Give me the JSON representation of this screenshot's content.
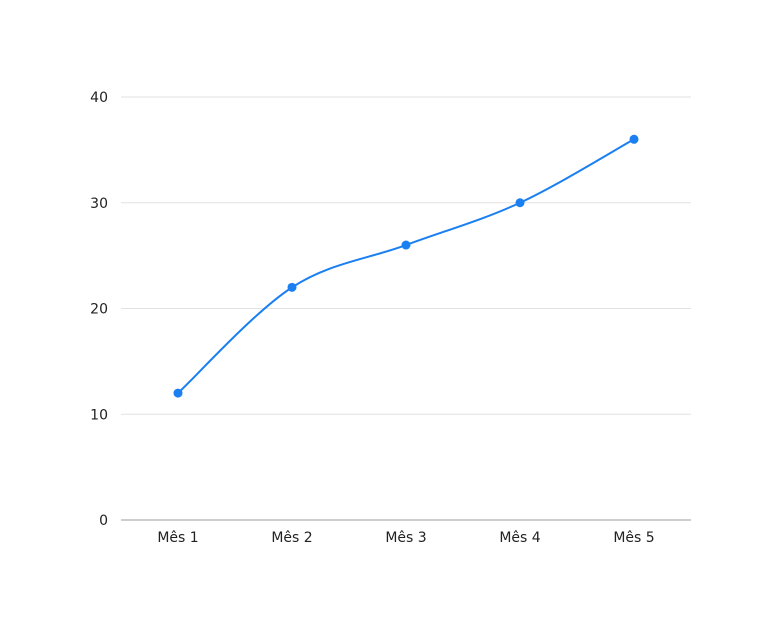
{
  "chart_data": {
    "type": "line",
    "title": "",
    "xlabel": "",
    "ylabel": "",
    "categories": [
      "Mês 1",
      "Mês 2",
      "Mês 3",
      "Mês 4",
      "Mês 5"
    ],
    "series": [
      {
        "values": [
          12,
          22,
          26,
          30,
          36
        ],
        "color": "#1a7ff0"
      }
    ],
    "ylim": [
      0,
      40
    ],
    "yticks": [
      0,
      10,
      20,
      30,
      40
    ],
    "grid": true,
    "smooth": true,
    "legend": "none"
  }
}
